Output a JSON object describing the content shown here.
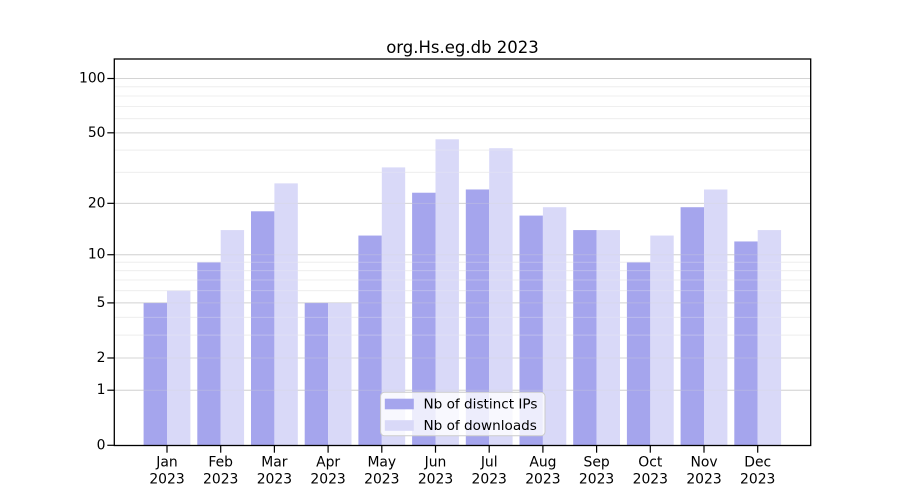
{
  "title": "org.Hs.eg.db 2023",
  "chart_data": {
    "type": "bar",
    "categories": [
      "Jan 2023",
      "Feb 2023",
      "Mar 2023",
      "Apr 2023",
      "May 2023",
      "Jun 2023",
      "Jul 2023",
      "Aug 2023",
      "Sep 2023",
      "Oct 2023",
      "Nov 2023",
      "Dec 2023"
    ],
    "months": [
      "Jan",
      "Feb",
      "Mar",
      "Apr",
      "May",
      "Jun",
      "Jul",
      "Aug",
      "Sep",
      "Oct",
      "Nov",
      "Dec"
    ],
    "year": "2023",
    "series": [
      {
        "name": "Nb of distinct IPs",
        "color": "#a5a5ed",
        "values": [
          5,
          9,
          18,
          5,
          13,
          23,
          24,
          17,
          14,
          9,
          19,
          12
        ]
      },
      {
        "name": "Nb of downloads",
        "color": "#d9d9f8",
        "values": [
          6,
          14,
          26,
          5,
          32,
          46,
          41,
          19,
          14,
          13,
          24,
          14
        ]
      }
    ],
    "title": "org.Hs.eg.db 2023",
    "xlabel": "",
    "ylabel": "",
    "y_scale": "log1p",
    "y_major_ticks": [
      0,
      1,
      2,
      5,
      10,
      20,
      50,
      100
    ],
    "y_minor_gridlines": [
      3,
      4,
      6,
      7,
      8,
      9,
      30,
      40,
      60,
      70,
      80,
      90
    ],
    "ylim": [
      0,
      128
    ],
    "grid": true,
    "legend_position": "bottom-center"
  },
  "colors": {
    "bar_ips": "#a5a5ed",
    "bar_downloads": "#d9d9f8",
    "grid_major": "#d4d4d4",
    "grid_minor": "#efefef",
    "axis": "#000000",
    "legend_border": "#cccccc",
    "legend_background": "rgba(255,255,255,0.8)",
    "background": "#ffffff"
  }
}
